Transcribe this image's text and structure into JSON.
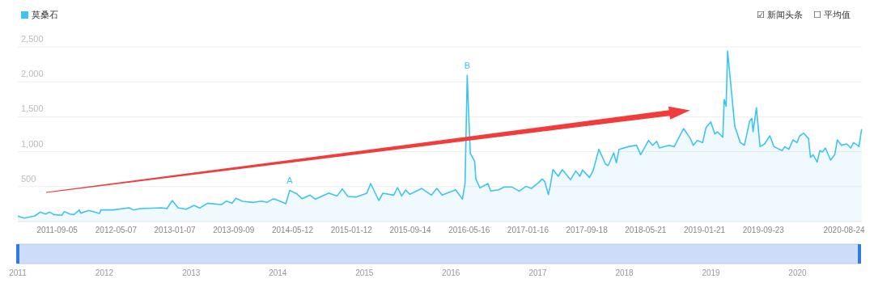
{
  "chart_data": {
    "type": "area",
    "legend": "top left",
    "grid": "y",
    "xlim": [
      "2011-03-25",
      "2020-11-06"
    ],
    "xticks": [
      "2011-09-05",
      "2012-05-07",
      "2013-01-07",
      "2013-09-09",
      "2014-05-12",
      "2015-01-12",
      "2015-09-14",
      "2016-05-16",
      "2017-01-16",
      "2017-09-18",
      "2018-05-21",
      "2019-01-21",
      "2019-09-23",
      "2020-08-24"
    ],
    "ylim": [
      0,
      2500
    ],
    "yticks": [
      500,
      {
        "value": 1000,
        "label": "1,000"
      },
      {
        "value": 1500,
        "label": "1,500"
      },
      {
        "value": 2000,
        "label": "2,000"
      },
      {
        "value": 2500,
        "label": "2,500"
      }
    ],
    "x2lim": [
      "2011-01-01",
      "2020-09-18"
    ],
    "x2ticks": [
      "2011",
      "2012",
      "2013",
      "2014",
      "2015",
      "2016",
      "2017",
      "2018",
      "2019",
      "2020"
    ],
    "annotations": [
      {
        "text": "A",
        "x": "2014-04-30",
        "y": 447
      },
      {
        "text": "B",
        "x": "2016-05-08",
        "y": 2094
      },
      "☑ 新闻头条",
      "☐ 平均值"
    ],
    "series": [
      {
        "name": "莫桑石",
        "color": "#3ec3f3",
        "x": [
          "2011-03-25",
          "2011-04-20",
          "2011-06-04",
          "2011-06-26",
          "2011-07-19",
          "2011-08-05",
          "2011-08-22",
          "2011-09-24",
          "2011-10-05",
          "2011-10-28",
          "2011-11-14",
          "2011-12-06",
          "2011-12-12",
          "2012-01-15",
          "2012-02-28",
          "2012-03-05",
          "2012-04-25",
          "2012-07-01",
          "2012-07-18",
          "2012-08-15",
          "2012-11-13",
          "2012-12-05",
          "2012-12-27",
          "2013-01-20",
          "2013-02-23",
          "2013-03-28",
          "2013-04-20",
          "2013-05-23",
          "2013-07-19",
          "2013-08-10",
          "2013-09-02",
          "2013-09-18",
          "2013-10-16",
          "2013-11-30",
          "2014-01-03",
          "2014-01-25",
          "2014-02-17",
          "2014-02-28",
          "2014-04-14",
          "2014-04-30",
          "2014-05-29",
          "2014-06-20",
          "2014-07-24",
          "2014-08-15",
          "2014-10-10",
          "2014-11-13",
          "2014-12-05",
          "2014-12-28",
          "2015-01-31",
          "2015-03-17",
          "2015-04-02",
          "2015-05-06",
          "2015-05-23",
          "2015-07-07",
          "2015-07-23",
          "2015-08-09",
          "2015-08-26",
          "2015-09-12",
          "2015-11-01",
          "2015-12-11",
          "2016-01-02",
          "2016-01-25",
          "2016-03-21",
          "2016-04-18",
          "2016-04-29",
          "2016-05-08",
          "2016-05-14",
          "2016-05-21",
          "2016-06-08",
          "2016-06-13",
          "2016-06-30",
          "2016-08-02",
          "2016-08-14",
          "2016-09-16",
          "2016-10-09",
          "2016-11-11",
          "2016-12-10",
          "2017-01-08",
          "2017-01-30",
          "2017-02-27",
          "2017-03-16",
          "2017-03-27",
          "2017-04-11",
          "2017-04-19",
          "2017-04-30",
          "2017-05-22",
          "2017-06-08",
          "2017-07-12",
          "2017-08-03",
          "2017-08-20",
          "2017-08-31",
          "2017-09-29",
          "2017-10-15",
          "2017-11-07",
          "2017-12-05",
          "2017-12-16",
          "2018-01-08",
          "2018-01-19",
          "2018-01-30",
          "2018-03-10",
          "2018-04-13",
          "2018-04-30",
          "2018-06-02",
          "2018-06-19",
          "2018-07-06",
          "2018-07-17",
          "2018-08-26",
          "2018-09-17",
          "2018-10-04",
          "2018-10-26",
          "2018-11-23",
          "2018-12-05",
          "2018-12-22",
          "2019-01-13",
          "2019-01-27",
          "2019-02-16",
          "2019-03-05",
          "2019-03-16",
          "2019-04-07",
          "2019-04-13",
          "2019-04-21",
          "2019-04-27",
          "2019-05-11",
          "2019-05-27",
          "2019-06-19",
          "2019-07-06",
          "2019-07-28",
          "2019-08-06",
          "2019-08-11",
          "2019-08-25",
          "2019-09-09",
          "2019-09-28",
          "2019-10-20",
          "2019-11-06",
          "2019-12-10",
          "2019-12-21",
          "2020-01-07",
          "2020-01-24",
          "2020-02-10",
          "2020-02-21",
          "2020-03-09",
          "2020-03-29",
          "2020-04-06",
          "2020-04-17",
          "2020-05-04",
          "2020-05-15",
          "2020-05-26",
          "2020-06-07",
          "2020-06-29",
          "2020-07-16",
          "2020-07-27",
          "2020-08-13",
          "2020-09-04",
          "2020-09-21",
          "2020-10-02",
          "2020-10-19",
          "2020-10-25",
          "2020-11-05"
        ],
        "values": [
          77,
          50,
          81,
          135,
          108,
          135,
          100,
          89,
          143,
          108,
          100,
          166,
          120,
          158,
          116,
          166,
          166,
          197,
          166,
          185,
          197,
          185,
          301,
          197,
          177,
          231,
          193,
          262,
          243,
          293,
          262,
          332,
          289,
          274,
          293,
          274,
          320,
          320,
          255,
          447,
          397,
          328,
          378,
          320,
          409,
          366,
          467,
          359,
          351,
          405,
          544,
          301,
          405,
          378,
          486,
          366,
          451,
          390,
          474,
          378,
          474,
          378,
          455,
          320,
          552,
          2094,
          1554,
          976,
          860,
          609,
          482,
          544,
          436,
          455,
          494,
          494,
          436,
          505,
          474,
          552,
          609,
          571,
          386,
          513,
          744,
          648,
          744,
          598,
          725,
          648,
          737,
          629,
          737,
          1034,
          822,
          802,
          984,
          841,
          1034,
          1072,
          1092,
          957,
          1161,
          1092,
          1149,
          1053,
          1092,
          1072,
          1188,
          1331,
          1188,
          1092,
          1161,
          1130,
          1342,
          1427,
          1254,
          1285,
          1207,
          1747,
          1651,
          2441,
          1940,
          1362,
          1130,
          1092,
          1439,
          1477,
          1285,
          1632,
          1072,
          1111,
          1227,
          1072,
          1015,
          1072,
          1034,
          1169,
          1130,
          1227,
          1265,
          1188,
          918,
          957,
          852,
          1015,
          995,
          1053,
          879,
          957,
          1169,
          1092,
          1111,
          1053,
          1130,
          1092,
          1072,
          1323
        ]
      }
    ]
  }
}
